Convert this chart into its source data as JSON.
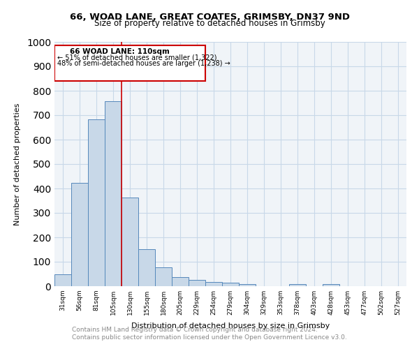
{
  "title_line1": "66, WOAD LANE, GREAT COATES, GRIMSBY, DN37 9ND",
  "title_line2": "Size of property relative to detached houses in Grimsby",
  "xlabel": "Distribution of detached houses by size in Grimsby",
  "ylabel": "Number of detached properties",
  "categories": [
    "31sqm",
    "56sqm",
    "81sqm",
    "105sqm",
    "130sqm",
    "155sqm",
    "180sqm",
    "205sqm",
    "229sqm",
    "254sqm",
    "279sqm",
    "304sqm",
    "329sqm",
    "353sqm",
    "378sqm",
    "403sqm",
    "428sqm",
    "453sqm",
    "477sqm",
    "502sqm",
    "527sqm"
  ],
  "values": [
    50,
    422,
    682,
    758,
    362,
    152,
    76,
    36,
    26,
    18,
    14,
    8,
    0,
    0,
    10,
    0,
    10,
    0,
    0,
    0,
    0
  ],
  "bar_color": "#c8d8e8",
  "bar_edge_color": "#5588bb",
  "property_line_x": 3.5,
  "property_label": "66 WOAD LANE: 110sqm",
  "annotation_line1": "← 51% of detached houses are smaller (1,322)",
  "annotation_line2": "48% of semi-detached houses are larger (1,238) →",
  "annotation_box_color": "#ffffff",
  "annotation_box_edge_color": "#cc0000",
  "vline_color": "#cc0000",
  "grid_color": "#c8d8e8",
  "background_color": "#f0f4f8",
  "ylim": [
    0,
    1000
  ],
  "yticks": [
    0,
    100,
    200,
    300,
    400,
    500,
    600,
    700,
    800,
    900,
    1000
  ],
  "footer_line1": "Contains HM Land Registry data © Crown copyright and database right 2024.",
  "footer_line2": "Contains public sector information licensed under the Open Government Licence v3.0.",
  "footer_color": "#888888"
}
